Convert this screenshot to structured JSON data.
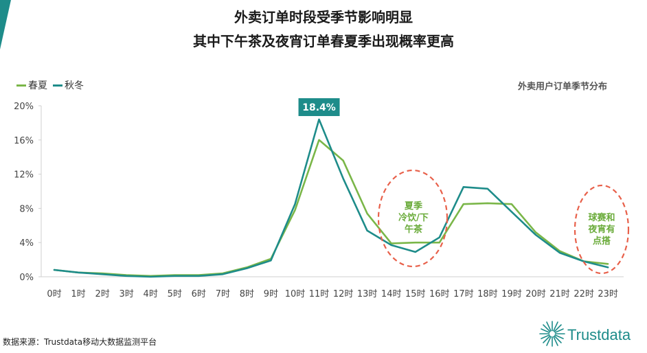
{
  "header": {
    "title_line1": "外卖订单时段受季节影响明显",
    "title_line2": "其中下午茶及夜宵订单春夏季出现概率更高"
  },
  "subtitle": "外卖用户订单季节分布",
  "source": "数据来源：Trustdata移动大数据监测平台",
  "logo_text": "Trustdata",
  "colors": {
    "spring_summer": "#7ab648",
    "autumn_winter": "#1e8c8a",
    "annotation_circle": "#e8604a",
    "brand": "#1e8c8a"
  },
  "annotations": {
    "peak_label": "18.4%",
    "afternoon": [
      "夏季",
      "冷饮/下",
      "午茶"
    ],
    "night": [
      "球赛和",
      "夜宵有",
      "点搭"
    ]
  },
  "chart_data": {
    "type": "line",
    "title": "",
    "xlabel": "",
    "ylabel": "",
    "ylim": [
      0,
      20
    ],
    "yticks": [
      "0%",
      "4%",
      "8%",
      "12%",
      "16%",
      "20%"
    ],
    "grid": false,
    "legend_position": "top-left",
    "categories": [
      "0时",
      "1时",
      "2时",
      "3时",
      "4时",
      "5时",
      "6时",
      "7时",
      "8时",
      "9时",
      "10时",
      "11时",
      "12时",
      "13时",
      "14时",
      "15时",
      "16时",
      "17时",
      "18时",
      "19时",
      "20时",
      "21时",
      "22时",
      "23时"
    ],
    "series": [
      {
        "name": "春夏",
        "values": [
          0.8,
          0.5,
          0.4,
          0.2,
          0.1,
          0.2,
          0.2,
          0.4,
          1.1,
          2.1,
          7.8,
          16.0,
          13.6,
          7.4,
          3.9,
          4.0,
          4.0,
          8.5,
          8.6,
          8.5,
          5.2,
          3.0,
          1.8,
          1.5
        ]
      },
      {
        "name": "秋冬",
        "values": [
          0.8,
          0.5,
          0.3,
          0.1,
          0.0,
          0.1,
          0.1,
          0.3,
          1.0,
          1.9,
          8.5,
          18.4,
          11.5,
          5.4,
          3.7,
          2.9,
          4.6,
          10.5,
          10.3,
          7.6,
          4.9,
          2.8,
          1.8,
          1.1
        ]
      }
    ]
  }
}
